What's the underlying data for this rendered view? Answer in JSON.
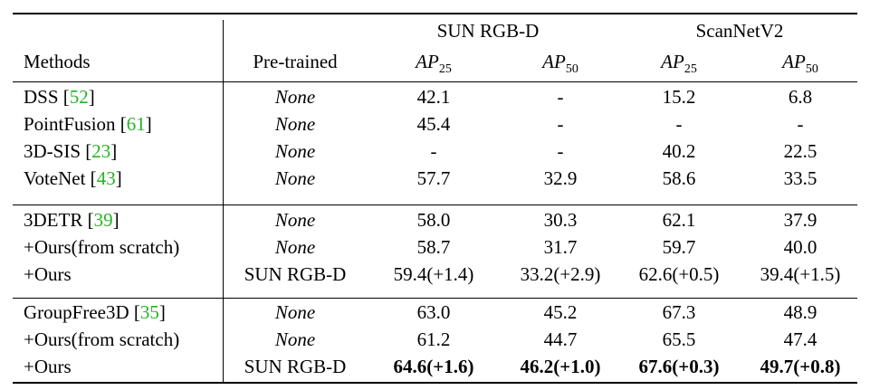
{
  "header": {
    "methods": "Methods",
    "pretrained": "Pre-trained",
    "groups": [
      "SUN RGB-D",
      "ScanNetV2"
    ],
    "metric_base": "AP",
    "metrics": [
      "25",
      "50",
      "25",
      "50"
    ]
  },
  "rows": [
    {
      "name": "DSS [",
      "ref": "52",
      "close": "]",
      "pre": "None",
      "vals": [
        "42.1",
        "-",
        "15.2",
        "6.8"
      ]
    },
    {
      "name": "PointFusion [",
      "ref": "61",
      "close": "]",
      "pre": "None",
      "vals": [
        "45.4",
        "-",
        "-",
        "-"
      ]
    },
    {
      "name": "3D-SIS [",
      "ref": "23",
      "close": "]",
      "pre": "None",
      "vals": [
        "-",
        "-",
        "40.2",
        "22.5"
      ]
    },
    {
      "name": "VoteNet [",
      "ref": "43",
      "close": "]",
      "pre": "None",
      "vals": [
        "57.7",
        "32.9",
        "58.6",
        "33.5"
      ]
    },
    {
      "name": "3DETR [",
      "ref": "39",
      "close": "]",
      "pre": "None",
      "vals": [
        "58.0",
        "30.3",
        "62.1",
        "37.9"
      ]
    },
    {
      "name": "+Ours(from scratch)",
      "ref": "",
      "close": "",
      "pre": "None",
      "vals": [
        "58.7",
        "31.7",
        "59.7",
        "40.0"
      ]
    },
    {
      "name": "+Ours",
      "ref": "",
      "close": "",
      "pre": "SUN RGB-D",
      "vals": [
        "59.4(+1.4)",
        "33.2(+2.9)",
        "62.6(+0.5)",
        "39.4(+1.5)"
      ]
    },
    {
      "name": "GroupFree3D [",
      "ref": "35",
      "close": "]",
      "pre": "None",
      "vals": [
        "63.0",
        "45.2",
        "67.3",
        "48.9"
      ]
    },
    {
      "name": "+Ours(from scratch)",
      "ref": "",
      "close": "",
      "pre": "None",
      "vals": [
        "61.2",
        "44.7",
        "65.5",
        "47.4"
      ]
    },
    {
      "name": "+Ours",
      "ref": "",
      "close": "",
      "pre": "SUN RGB-D",
      "vals": [
        "64.6(+1.6)",
        "46.2(+1.0)",
        "67.6(+0.3)",
        "49.7(+0.8)"
      ]
    }
  ]
}
